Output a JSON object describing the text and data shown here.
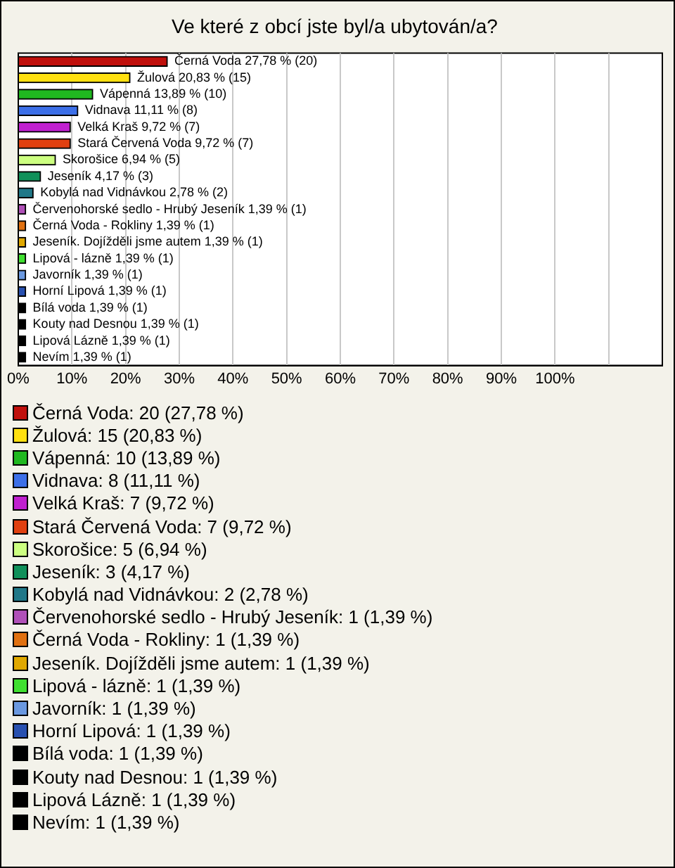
{
  "chart_data": {
    "type": "bar",
    "orientation": "horizontal",
    "title": "Ve které z obcí jste byl/a ubytován/a?",
    "categories": [
      "Černá Voda",
      "Žulová",
      "Vápenná",
      "Vidnava",
      "Velká Kraš",
      "Stará Červená Voda",
      "Skorošice",
      "Jeseník",
      "Kobylá nad Vidnávkou",
      "Červenohorské sedlo - Hrubý Jeseník",
      "Černá Voda - Rokliny",
      "Jeseník. Dojížděli jsme autem",
      "Lipová - lázně",
      "Javorník",
      "Horní Lipová",
      "Bílá voda",
      "Kouty nad Desnou",
      "Lipová Lázně",
      "Nevím"
    ],
    "values": [
      27.78,
      20.83,
      13.89,
      11.11,
      9.72,
      9.72,
      6.94,
      4.17,
      2.78,
      1.39,
      1.39,
      1.39,
      1.39,
      1.39,
      1.39,
      1.39,
      1.39,
      1.39,
      1.39
    ],
    "colors": [
      "#c0100c",
      "#ffe010",
      "#20b820",
      "#3c6fe8",
      "#c020d0",
      "#e04010",
      "#ccff80",
      "#10905a",
      "#207888",
      "#b050b8",
      "#e07010",
      "#e0a800",
      "#40e030",
      "#6a98e0",
      "#2850b0",
      "#000000",
      "#000000",
      "#000000",
      "#000000"
    ],
    "value_labels": [
      "27,78 % (20)",
      "20,83 % (15)",
      "13,89 % (10)",
      "11,11 % (8)",
      "9,72 % (7)",
      "9,72 % (7)",
      "6,94 % (5)",
      "4,17 % (3)",
      "2,78 % (2)",
      "1,39 % (1)",
      "1,39 % (1)",
      "1,39 % (1)",
      "1,39 % (1)",
      "1,39 % (1)",
      "1,39 % (1)",
      "1,39 % (1)",
      "1,39 % (1)",
      "1,39 % (1)",
      "1,39 % (1)"
    ],
    "xlim": [
      0,
      120
    ],
    "xticks": [
      {
        "value": 0,
        "label": "0%"
      },
      {
        "value": 10,
        "label": "10%"
      },
      {
        "value": 20,
        "label": "20%"
      },
      {
        "value": 30,
        "label": "30%"
      },
      {
        "value": 40,
        "label": "40%"
      },
      {
        "value": 50,
        "label": "50%"
      },
      {
        "value": 60,
        "label": "60%"
      },
      {
        "value": 70,
        "label": "70%"
      },
      {
        "value": 80,
        "label": "80%"
      },
      {
        "value": 90,
        "label": "90%"
      },
      {
        "value": 100,
        "label": "100%"
      },
      {
        "value": 110,
        "label": null
      }
    ],
    "grid": "x",
    "tick_labels": "x",
    "annotations": [
      "Černá Voda: 20 (27,78 %)",
      "Žulová: 15 (20,83 %)",
      "Vápenná: 10 (13,89 %)",
      "Vidnava: 8 (11,11 %)",
      "Velká Kraš: 7 (9,72 %)",
      "Stará Červená Voda: 7 (9,72 %)",
      "Skorošice: 5 (6,94 %)",
      "Jeseník: 3 (4,17 %)",
      "Kobylá nad Vidnávkou: 2 (2,78 %)",
      "Červenohorské sedlo - Hrubý Jeseník: 1 (1,39 %)",
      "Černá Voda - Rokliny: 1 (1,39 %)",
      "Jeseník. Dojížděli jsme autem: 1 (1,39 %)",
      "Lipová - lázně: 1 (1,39 %)",
      "Javorník: 1 (1,39 %)",
      "Horní Lipová: 1 (1,39 %)",
      "Bílá voda: 1 (1,39 %)",
      "Kouty nad Desnou: 1 (1,39 %)",
      "Lipová Lázně: 1 (1,39 %)",
      "Nevím: 1 (1,39 %)"
    ]
  }
}
